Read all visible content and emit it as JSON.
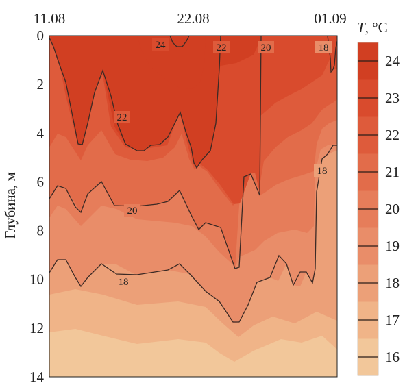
{
  "chart_data": {
    "type": "heatmap",
    "subtype": "depth-time temperature contour",
    "x_ticks": [
      "11.08",
      "22.08",
      "01.09"
    ],
    "ylabel": "Глубина, м",
    "ylim": [
      0,
      14
    ],
    "y_ticks": [
      "0",
      "2",
      "4",
      "6",
      "8",
      "10",
      "12",
      "14"
    ],
    "y_inverted": true,
    "colorbar": {
      "title_symbol": "T",
      "title_unit": ", °C",
      "ticks": [
        "24",
        "23",
        "22",
        "21",
        "20",
        "19",
        "18",
        "17",
        "16"
      ],
      "range": [
        15.5,
        24.5
      ],
      "colors": {
        "16": "#f2c79a",
        "17": "#f0b488",
        "18": "#eca078",
        "19": "#e98d69",
        "20": "#e67d5a",
        "21": "#e26c4a",
        "22": "#de5b3b",
        "23": "#d94b2d",
        "24": "#d13f22"
      }
    },
    "contour_lines": [
      {
        "level": 24,
        "label": "24"
      },
      {
        "level": 22,
        "label": "22"
      },
      {
        "level": 20,
        "label": "20"
      },
      {
        "level": 18,
        "label": "18"
      }
    ],
    "inline_labels": [
      "24",
      "22",
      "20",
      "22",
      "18",
      "20",
      "18"
    ],
    "grid": false
  }
}
